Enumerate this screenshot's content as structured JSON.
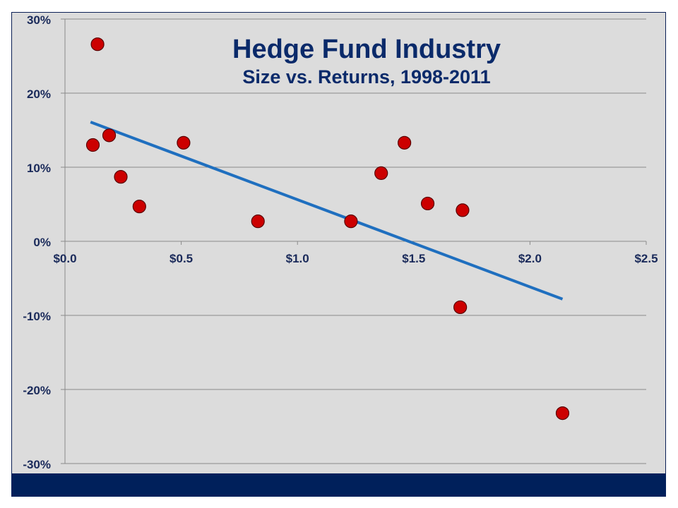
{
  "chart_data": {
    "type": "scatter",
    "title": "Hedge Fund Industry",
    "subtitle": "Size vs. Returns, 1998-2011",
    "xlabel": "",
    "ylabel": "",
    "xlim": [
      0,
      2.5
    ],
    "ylim": [
      -30,
      30
    ],
    "grid": true,
    "x_ticks": [
      {
        "v": 0,
        "label": "$0.0"
      },
      {
        "v": 0.5,
        "label": "$0.5"
      },
      {
        "v": 1,
        "label": "$1.0"
      },
      {
        "v": 1.5,
        "label": "$1.5"
      },
      {
        "v": 2,
        "label": "$2.0"
      },
      {
        "v": 2.5,
        "label": "$2.5"
      }
    ],
    "y_ticks": [
      {
        "v": 30,
        "label": "30%"
      },
      {
        "v": 20,
        "label": "20%"
      },
      {
        "v": 10,
        "label": "10%"
      },
      {
        "v": 0,
        "label": "0%"
      },
      {
        "v": -10,
        "label": "-10%"
      },
      {
        "v": -20,
        "label": "-20%"
      },
      {
        "v": -30,
        "label": "-30%"
      }
    ],
    "points": [
      {
        "x": 0.14,
        "y": 26.6
      },
      {
        "x": 0.12,
        "y": 13.0
      },
      {
        "x": 0.19,
        "y": 14.3
      },
      {
        "x": 0.24,
        "y": 8.7
      },
      {
        "x": 0.32,
        "y": 4.7
      },
      {
        "x": 0.51,
        "y": 13.3
      },
      {
        "x": 0.83,
        "y": 2.7
      },
      {
        "x": 1.23,
        "y": 2.7
      },
      {
        "x": 1.36,
        "y": 9.2
      },
      {
        "x": 1.46,
        "y": 13.3
      },
      {
        "x": 1.56,
        "y": 5.1
      },
      {
        "x": 1.71,
        "y": 4.2
      },
      {
        "x": 1.7,
        "y": -8.9
      },
      {
        "x": 2.14,
        "y": -23.2
      }
    ],
    "trendline": {
      "x": [
        0.11,
        2.14
      ],
      "y": [
        16.1,
        -7.8
      ]
    },
    "colors": {
      "point": "#cc0000",
      "trend": "#1f6fbf",
      "title": "#0a2a6a",
      "band": "#00205b"
    }
  }
}
